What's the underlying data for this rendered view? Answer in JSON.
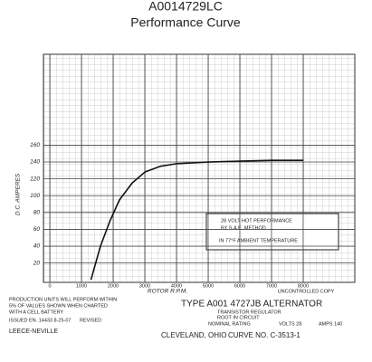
{
  "chart_data": {
    "type": "line",
    "title": "A0014729LC",
    "subtitle": "Performance Curve",
    "y_label": "D.C. AMPERES",
    "x_label": "ROTOR R.P.M.",
    "x": [
      1300,
      1600,
      1900,
      2200,
      2600,
      3000,
      3500,
      4000,
      5000,
      6000,
      7000,
      8000
    ],
    "values": [
      0,
      40,
      70,
      95,
      115,
      128,
      135,
      138,
      140,
      141,
      142,
      142
    ],
    "color": "#111111",
    "xlim": [
      -200,
      9630
    ],
    "ylim": [
      -3,
      268
    ],
    "xticks": [
      0,
      1000,
      2000,
      3000,
      4000,
      5000,
      6000,
      7000,
      8000
    ],
    "yticks": [
      20,
      40,
      60,
      80,
      100,
      120,
      140,
      160
    ],
    "grid": true,
    "annotations": [
      "28 VOLT HOT PERFORMANCE",
      "BY S.A.E. METHOD",
      "IN 77°F AMBIENT TEMPERATURE"
    ]
  },
  "footer": {
    "stamp": "UNCONTROLLED COPY",
    "note": [
      "PRODUCTION UNITS WILL PERFORM WITHIN",
      "5% OF VALUES SHOWN WHEN CHARTED",
      "WITH A CELL BATTERY"
    ],
    "issued": "ISSUED EN. 14433 8-25-07",
    "revised": "REVISED",
    "company": "LEECE-NEVILLE",
    "type": "TYPE A001 4727JB ALTERNATOR",
    "regulator": "TRANSISTOR REGULATOR",
    "root": "ROOT IN CIRCUIT",
    "rating": "NOMINAL RATING",
    "volts": "VOLTS 28",
    "amps": "AMPS 140",
    "city": "CLEVELAND, OHIO",
    "curve": "CURVE NO. C-3513-1"
  }
}
